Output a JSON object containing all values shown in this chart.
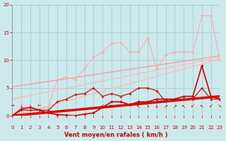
{
  "bg_color": "#cceaec",
  "grid_color": "#aacccc",
  "xlabel": "Vent moyen/en rafales ( km/h )",
  "xlabel_color": "#cc0000",
  "tick_color": "#cc0000",
  "xlim": [
    0,
    23
  ],
  "ylim": [
    0,
    20
  ],
  "yticks": [
    0,
    5,
    10,
    15,
    20
  ],
  "xticks": [
    0,
    1,
    2,
    3,
    4,
    5,
    6,
    7,
    8,
    9,
    10,
    11,
    12,
    13,
    14,
    15,
    16,
    17,
    18,
    19,
    20,
    21,
    22,
    23
  ],
  "line_regression1": {
    "x": [
      0,
      23
    ],
    "y": [
      0.0,
      10.2
    ],
    "color": "#ffbbbb",
    "lw": 1.0
  },
  "line_regression2": {
    "x": [
      0,
      23
    ],
    "y": [
      3.0,
      10.5
    ],
    "color": "#ffbbbb",
    "lw": 1.0
  },
  "line_regression3": {
    "x": [
      0,
      23
    ],
    "y": [
      5.2,
      10.8
    ],
    "color": "#ff9999",
    "lw": 1.0
  },
  "line_regression4": {
    "x": [
      0,
      23
    ],
    "y": [
      0.0,
      3.5
    ],
    "color": "#dd0000",
    "lw": 2.5
  },
  "line_data1": {
    "x": [
      0,
      1,
      2,
      3,
      4,
      5,
      6,
      7,
      8,
      9,
      10,
      11,
      12,
      13,
      14,
      15,
      16,
      17,
      18,
      19,
      20,
      21,
      22,
      23
    ],
    "y": [
      0,
      1.5,
      1.5,
      1.2,
      1.5,
      6.5,
      7.0,
      6.5,
      8.5,
      10.5,
      11.5,
      13.0,
      13.2,
      11.5,
      11.5,
      14.0,
      8.5,
      11.0,
      11.5,
      11.5,
      11.5,
      18.0,
      18.0,
      10.0
    ],
    "color": "#ffaaaa",
    "lw": 0.8,
    "marker": "D",
    "ms": 1.8
  },
  "line_data2": {
    "x": [
      0,
      1,
      2,
      3,
      4,
      5,
      6,
      7,
      8,
      9,
      10,
      11,
      12,
      13,
      14,
      15,
      16,
      17,
      18,
      19,
      20,
      21,
      22,
      23
    ],
    "y": [
      0,
      1.0,
      1.0,
      1.0,
      1.0,
      2.5,
      3.0,
      3.8,
      4.0,
      5.0,
      3.5,
      4.0,
      3.5,
      4.0,
      5.0,
      5.0,
      4.5,
      2.5,
      3.0,
      3.0,
      3.0,
      5.0,
      3.0,
      3.0
    ],
    "color": "#cc2222",
    "lw": 1.0,
    "marker": "D",
    "ms": 1.8
  },
  "line_data3": {
    "x": [
      0,
      1,
      2,
      3,
      4,
      5,
      6,
      7,
      8,
      9,
      10,
      11,
      12,
      13,
      14,
      15,
      16,
      17,
      18,
      19,
      20,
      21,
      22,
      23
    ],
    "y": [
      0,
      1.2,
      1.5,
      1.0,
      0.5,
      0.2,
      0.1,
      0.0,
      0.3,
      0.5,
      1.5,
      2.5,
      2.5,
      2.0,
      2.5,
      2.5,
      3.0,
      3.0,
      3.0,
      3.5,
      3.5,
      9.0,
      3.5,
      3.0
    ],
    "color": "#cc0000",
    "lw": 1.2,
    "marker": "D",
    "ms": 1.8
  },
  "wind_arrows": [
    "→",
    "↓",
    "↓",
    "←",
    "",
    "",
    "",
    "",
    "",
    "",
    "↙",
    "←",
    "←",
    "→",
    "↖",
    "↘",
    "↓",
    "↗",
    "↗",
    "↖",
    "↙",
    "↖",
    "↙",
    "↘"
  ],
  "wind_arrow_color": "#cc0000"
}
